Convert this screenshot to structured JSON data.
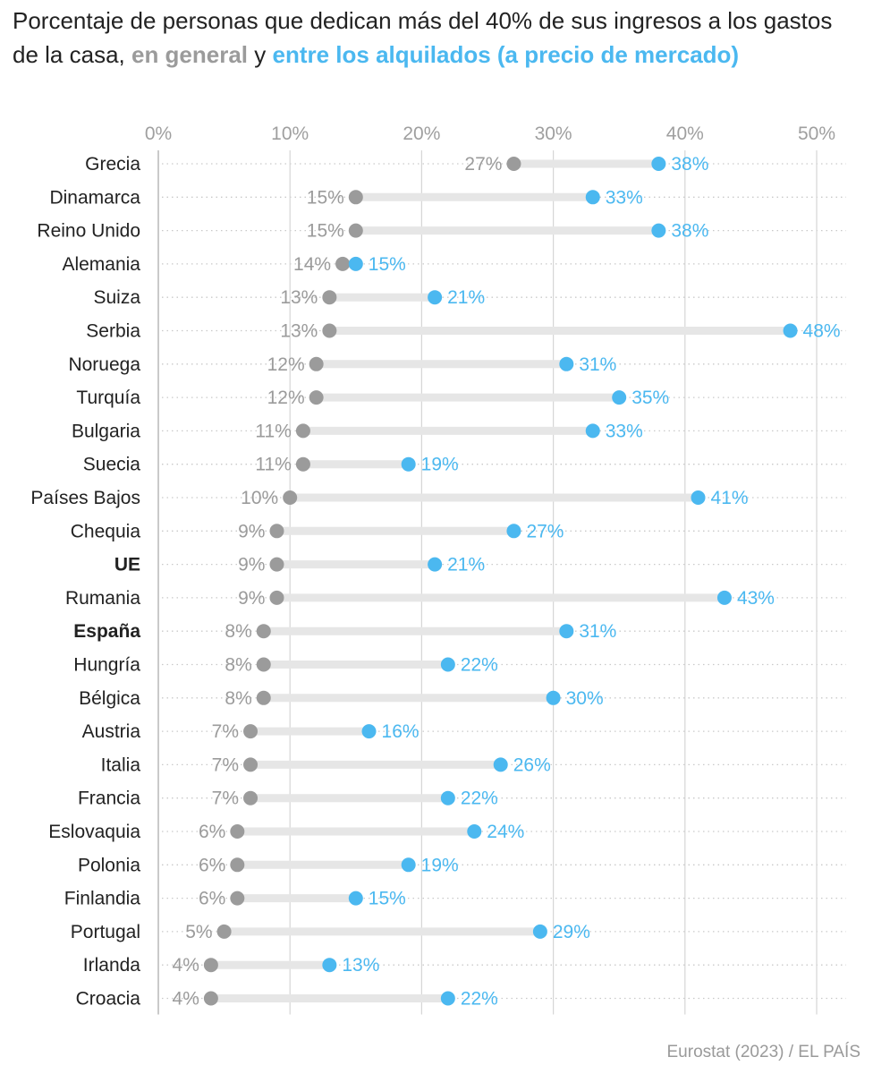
{
  "title": {
    "prefix": "Porcentaje de personas que dedican más del 40% de sus ingresos a los gastos de la casa, ",
    "general": "en general",
    "connector": " y ",
    "rent": "entre los alquilados (a precio de mercado)"
  },
  "source": "Eurostat (2023) / EL PAÍS",
  "colors": {
    "general": "#9b9b9b",
    "rent": "#4bb8f0",
    "connector": "#e6e6e6",
    "grid": "#d6d6d6",
    "dotgrid": "#c9c9c9",
    "axis_labels": "#9f9f9f",
    "country_labels": "#222222"
  },
  "chart_data": {
    "type": "dumbbell",
    "xlim": [
      0,
      50
    ],
    "x_ticks": [
      0,
      10,
      20,
      30,
      40,
      50
    ],
    "x_tick_labels": [
      "0%",
      "10%",
      "20%",
      "30%",
      "40%",
      "50%"
    ],
    "series": [
      {
        "name": "en general",
        "key": "general"
      },
      {
        "name": "entre los alquilados (a precio de mercado)",
        "key": "rent"
      }
    ],
    "rows": [
      {
        "country": "Grecia",
        "general": 27,
        "rent": 38,
        "general_label": "27%",
        "rent_label": "38%",
        "bold": false
      },
      {
        "country": "Dinamarca",
        "general": 15,
        "rent": 33,
        "general_label": "15%",
        "rent_label": "33%",
        "bold": false
      },
      {
        "country": "Reino Unido",
        "general": 15,
        "rent": 38,
        "general_label": "15%",
        "rent_label": "38%",
        "bold": false
      },
      {
        "country": "Alemania",
        "general": 14,
        "rent": 15,
        "general_label": "14%",
        "rent_label": "15%",
        "bold": false
      },
      {
        "country": "Suiza",
        "general": 13,
        "rent": 21,
        "general_label": "13%",
        "rent_label": "21%",
        "bold": false
      },
      {
        "country": "Serbia",
        "general": 13,
        "rent": 48,
        "general_label": "13%",
        "rent_label": "48%",
        "bold": false
      },
      {
        "country": "Noruega",
        "general": 12,
        "rent": 31,
        "general_label": "12%",
        "rent_label": "31%",
        "bold": false
      },
      {
        "country": "Turquía",
        "general": 12,
        "rent": 35,
        "general_label": "12%",
        "rent_label": "35%",
        "bold": false
      },
      {
        "country": "Bulgaria",
        "general": 11,
        "rent": 33,
        "general_label": "11%",
        "rent_label": "33%",
        "bold": false
      },
      {
        "country": "Suecia",
        "general": 11,
        "rent": 19,
        "general_label": "11%",
        "rent_label": "19%",
        "bold": false
      },
      {
        "country": "Países Bajos",
        "general": 10,
        "rent": 41,
        "general_label": "10%",
        "rent_label": "41%",
        "bold": false
      },
      {
        "country": "Chequia",
        "general": 9,
        "rent": 27,
        "general_label": "9%",
        "rent_label": "27%",
        "bold": false
      },
      {
        "country": "UE",
        "general": 9,
        "rent": 21,
        "general_label": "9%",
        "rent_label": "21%",
        "bold": true
      },
      {
        "country": "Rumania",
        "general": 9,
        "rent": 43,
        "general_label": "9%",
        "rent_label": "43%",
        "bold": false
      },
      {
        "country": "España",
        "general": 8,
        "rent": 31,
        "general_label": "8%",
        "rent_label": "31%",
        "bold": true
      },
      {
        "country": "Hungría",
        "general": 8,
        "rent": 22,
        "general_label": "8%",
        "rent_label": "22%",
        "bold": false
      },
      {
        "country": "Bélgica",
        "general": 8,
        "rent": 30,
        "general_label": "8%",
        "rent_label": "30%",
        "bold": false
      },
      {
        "country": "Austria",
        "general": 7,
        "rent": 16,
        "general_label": "7%",
        "rent_label": "16%",
        "bold": false
      },
      {
        "country": "Italia",
        "general": 7,
        "rent": 26,
        "general_label": "7%",
        "rent_label": "26%",
        "bold": false
      },
      {
        "country": "Francia",
        "general": 7,
        "rent": 22,
        "general_label": "7%",
        "rent_label": "22%",
        "bold": false
      },
      {
        "country": "Eslovaquia",
        "general": 6,
        "rent": 24,
        "general_label": "6%",
        "rent_label": "24%",
        "bold": false
      },
      {
        "country": "Polonia",
        "general": 6,
        "rent": 19,
        "general_label": "6%",
        "rent_label": "19%",
        "bold": false
      },
      {
        "country": "Finlandia",
        "general": 6,
        "rent": 15,
        "general_label": "6%",
        "rent_label": "15%",
        "bold": false
      },
      {
        "country": "Portugal",
        "general": 5,
        "rent": 29,
        "general_label": "5%",
        "rent_label": "29%",
        "bold": false
      },
      {
        "country": "Irlanda",
        "general": 4,
        "rent": 13,
        "general_label": "4%",
        "rent_label": "13%",
        "bold": false
      },
      {
        "country": "Croacia",
        "general": 4,
        "rent": 22,
        "general_label": "4%",
        "rent_label": "22%",
        "bold": false
      }
    ]
  }
}
